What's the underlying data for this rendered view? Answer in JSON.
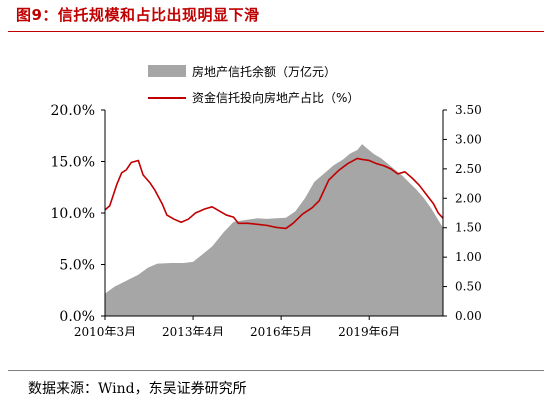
{
  "figure": {
    "title": "图9：信托规模和占比出现明显下滑",
    "source": "数据来源：Wind，东吴证券研究所"
  },
  "colors": {
    "area": "#a6a6a6",
    "line": "#c00000",
    "axis": "#000000"
  },
  "chart_data": {
    "type": "area",
    "legend_position": "top-center",
    "grid": false,
    "x_tick_labels": [
      "2010年3月",
      "2013年4月",
      "2016年5月",
      "2019年6月"
    ],
    "x_tick_indices": [
      0,
      37,
      74,
      111
    ],
    "left_axis": {
      "ylim": [
        0,
        0.2
      ],
      "ticks": [
        "0.0%",
        "5.0%",
        "10.0%",
        "15.0%",
        "20.0%"
      ]
    },
    "right_axis": {
      "ylim": [
        0,
        3.5
      ],
      "ticks": [
        "0.00",
        "0.50",
        "1.00",
        "1.50",
        "2.00",
        "2.50",
        "3.00",
        "3.50"
      ]
    },
    "series": [
      {
        "name": "房地产信托余额（万亿元）",
        "type": "area",
        "axis": "right",
        "points": [
          [
            0,
            0.38
          ],
          [
            4,
            0.5
          ],
          [
            9,
            0.6
          ],
          [
            14,
            0.7
          ],
          [
            18,
            0.82
          ],
          [
            22,
            0.89
          ],
          [
            28,
            0.9
          ],
          [
            33,
            0.9
          ],
          [
            37,
            0.92
          ],
          [
            41,
            1.05
          ],
          [
            45,
            1.18
          ],
          [
            50,
            1.43
          ],
          [
            54,
            1.6
          ],
          [
            59,
            1.63
          ],
          [
            64,
            1.66
          ],
          [
            68,
            1.65
          ],
          [
            72,
            1.66
          ],
          [
            76,
            1.67
          ],
          [
            80,
            1.78
          ],
          [
            84,
            2.0
          ],
          [
            88,
            2.28
          ],
          [
            92,
            2.42
          ],
          [
            96,
            2.56
          ],
          [
            100,
            2.66
          ],
          [
            103,
            2.76
          ],
          [
            106,
            2.82
          ],
          [
            108,
            2.92
          ],
          [
            110,
            2.85
          ],
          [
            113,
            2.75
          ],
          [
            116,
            2.68
          ],
          [
            119,
            2.58
          ],
          [
            122,
            2.48
          ],
          [
            125,
            2.38
          ],
          [
            128,
            2.26
          ],
          [
            131,
            2.14
          ],
          [
            134,
            2.0
          ],
          [
            137,
            1.83
          ],
          [
            140,
            1.63
          ],
          [
            142,
            1.5
          ]
        ]
      },
      {
        "name": "资金信托投向房地产占比（%）",
        "type": "line",
        "axis": "left",
        "points": [
          [
            0,
            0.103
          ],
          [
            2,
            0.107
          ],
          [
            5,
            0.128
          ],
          [
            7,
            0.139
          ],
          [
            9,
            0.142
          ],
          [
            11,
            0.149
          ],
          [
            14,
            0.151
          ],
          [
            16,
            0.137
          ],
          [
            19,
            0.129
          ],
          [
            21,
            0.122
          ],
          [
            24,
            0.109
          ],
          [
            26,
            0.098
          ],
          [
            29,
            0.094
          ],
          [
            32,
            0.091
          ],
          [
            35,
            0.094
          ],
          [
            38,
            0.1
          ],
          [
            42,
            0.104
          ],
          [
            45,
            0.106
          ],
          [
            48,
            0.102
          ],
          [
            51,
            0.098
          ],
          [
            54,
            0.096
          ],
          [
            56,
            0.09
          ],
          [
            60,
            0.09
          ],
          [
            64,
            0.089
          ],
          [
            68,
            0.088
          ],
          [
            72,
            0.086
          ],
          [
            76,
            0.085
          ],
          [
            79,
            0.09
          ],
          [
            83,
            0.099
          ],
          [
            87,
            0.105
          ],
          [
            90,
            0.112
          ],
          [
            94,
            0.132
          ],
          [
            98,
            0.141
          ],
          [
            102,
            0.148
          ],
          [
            106,
            0.153
          ],
          [
            108,
            0.152
          ],
          [
            111,
            0.151
          ],
          [
            114,
            0.148
          ],
          [
            117,
            0.146
          ],
          [
            120,
            0.143
          ],
          [
            123,
            0.138
          ],
          [
            126,
            0.14
          ],
          [
            129,
            0.134
          ],
          [
            132,
            0.127
          ],
          [
            135,
            0.118
          ],
          [
            138,
            0.109
          ],
          [
            140,
            0.1
          ],
          [
            142,
            0.095
          ]
        ]
      }
    ]
  }
}
